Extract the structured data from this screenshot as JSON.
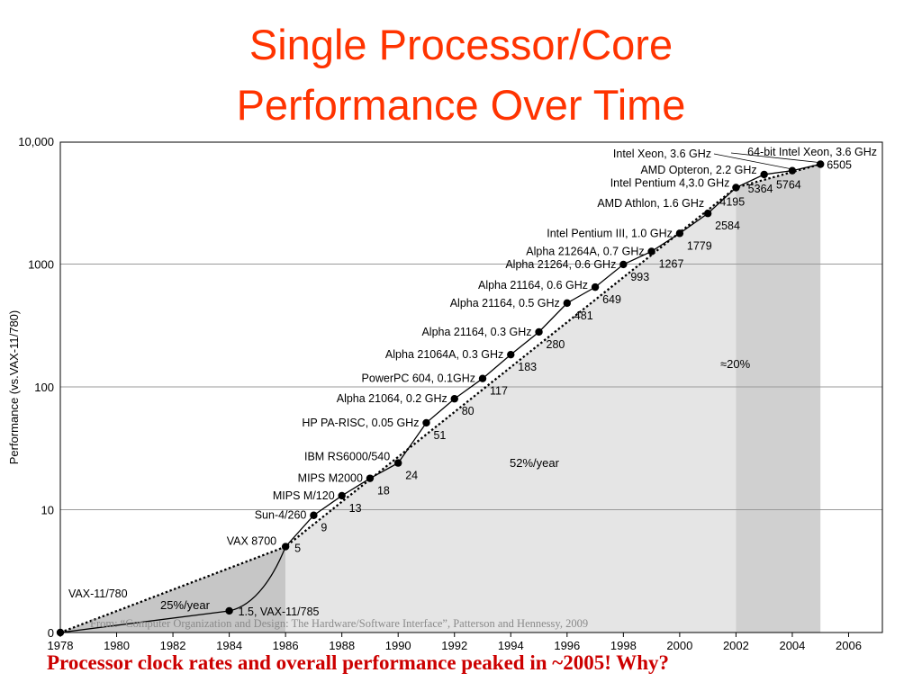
{
  "slide": {
    "title_line1": "Single Processor/Core",
    "title_line2": "Performance Over Time",
    "caption": "Processor clock rates and overall performance peaked in ~2005! Why?",
    "source": "From: “Computer Organization and Design: The Hardware/Software Interface”, Patterson and Hennessy, 2009",
    "colors": {
      "title": "#ff3300",
      "caption": "#cc0000"
    }
  },
  "chart_data": {
    "type": "line",
    "ylabel": "Performance (vs.VAX-11/780)",
    "xlabel": "",
    "ytick_labels": [
      "0",
      "10",
      "100",
      "1000",
      "10,000"
    ],
    "xtick_labels": [
      "1978",
      "1980",
      "1982",
      "1984",
      "1986",
      "1988",
      "1990",
      "1992",
      "1994",
      "1996",
      "1998",
      "2000",
      "2002",
      "2004",
      "2006"
    ],
    "xlim": [
      1978,
      2007.2
    ],
    "y_scale": "log",
    "grid": true,
    "region_labels": [
      "25%/year",
      "52%/year",
      "≈20%"
    ],
    "processor_series": {
      "points": [
        {
          "x": 1978,
          "y": 1,
          "label": "VAX-11/780"
        },
        {
          "x": 1984,
          "y": 1.5,
          "label": "1.5, VAX-11/785"
        },
        {
          "x": 1986,
          "y": 5,
          "label": "VAX 8700"
        },
        {
          "x": 1987,
          "y": 9,
          "label": "Sun-4/260"
        },
        {
          "x": 1988,
          "y": 13,
          "label": "MIPS M/120"
        },
        {
          "x": 1989,
          "y": 18,
          "label": "MIPS M2000"
        },
        {
          "x": 1990,
          "y": 24,
          "label": "IBM RS6000/540"
        },
        {
          "x": 1991,
          "y": 51,
          "label": "HP PA-RISC, 0.05 GHz"
        },
        {
          "x": 1992,
          "y": 80,
          "label": "Alpha 21064, 0.2 GHz"
        },
        {
          "x": 1993,
          "y": 117,
          "label": "PowerPC 604, 0.1GHz"
        },
        {
          "x": 1994,
          "y": 183,
          "label": "Alpha 21064A, 0.3 GHz"
        },
        {
          "x": 1995,
          "y": 280,
          "label": "Alpha 21164, 0.3 GHz"
        },
        {
          "x": 1996,
          "y": 481,
          "label": "Alpha 21164, 0.5 GHz"
        },
        {
          "x": 1997,
          "y": 649,
          "label": "Alpha 21164, 0.6 GHz"
        },
        {
          "x": 1998,
          "y": 993,
          "label": "Alpha 21264, 0.6 GHz"
        },
        {
          "x": 1999,
          "y": 1267,
          "label": "Alpha 21264A, 0.7 GHz"
        },
        {
          "x": 2000,
          "y": 1779,
          "label": "Intel Pentium III, 1.0 GHz"
        },
        {
          "x": 2001,
          "y": 2584,
          "label": "AMD Athlon, 1.6 GHz"
        },
        {
          "x": 2002,
          "y": 4195,
          "label": "Intel Pentium 4,3.0 GHz"
        },
        {
          "x": 2003,
          "y": 5364,
          "label": "AMD Opteron, 2.2 GHz"
        },
        {
          "x": 2004,
          "y": 5764,
          "label": "Intel Xeon, 3.6 GHz"
        },
        {
          "x": 2005,
          "y": 6505,
          "label": "64-bit Intel Xeon, 3.6 GHz"
        }
      ],
      "value_labels": [
        "1.5, VAX-11/785",
        "5",
        "9",
        "13",
        "18",
        "24",
        "51",
        "80",
        "117",
        "183",
        "280",
        "481",
        "649",
        "993",
        "1267",
        "1779",
        "2584",
        "4195",
        "5364",
        "5764",
        "6505"
      ]
    },
    "trend_series": {
      "points": [
        {
          "x": 1978,
          "y": 1
        },
        {
          "x": 1986,
          "y": 5
        },
        {
          "x": 2002,
          "y": 4195
        },
        {
          "x": 2005,
          "y": 6505
        }
      ]
    }
  }
}
